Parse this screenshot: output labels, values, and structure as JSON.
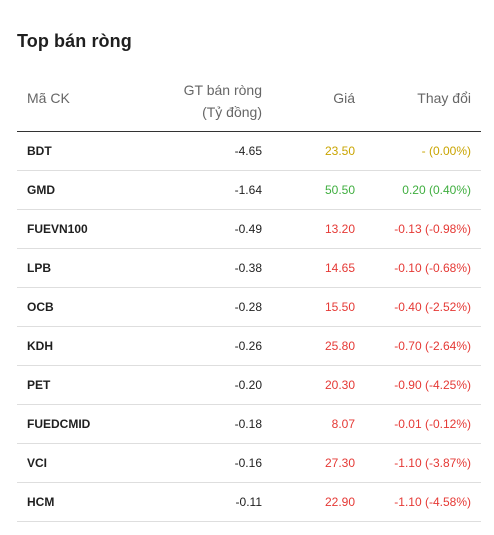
{
  "panel": {
    "title": "Top bán ròng"
  },
  "table": {
    "headers": {
      "code": "Mã CK",
      "value_line1": "GT bán ròng",
      "value_line2": "(Tỷ đồng)",
      "price": "Giá",
      "change": "Thay đổi"
    },
    "rows": [
      {
        "code": "BDT",
        "value": "-4.65",
        "price": "23.50",
        "change": "- (0.00%)",
        "status": "ref"
      },
      {
        "code": "GMD",
        "value": "-1.64",
        "price": "50.50",
        "change": "0.20 (0.40%)",
        "status": "up"
      },
      {
        "code": "FUEVN100",
        "value": "-0.49",
        "price": "13.20",
        "change": "-0.13 (-0.98%)",
        "status": "down"
      },
      {
        "code": "LPB",
        "value": "-0.38",
        "price": "14.65",
        "change": "-0.10 (-0.68%)",
        "status": "down"
      },
      {
        "code": "OCB",
        "value": "-0.28",
        "price": "15.50",
        "change": "-0.40 (-2.52%)",
        "status": "down"
      },
      {
        "code": "KDH",
        "value": "-0.26",
        "price": "25.80",
        "change": "-0.70 (-2.64%)",
        "status": "down"
      },
      {
        "code": "PET",
        "value": "-0.20",
        "price": "20.30",
        "change": "-0.90 (-4.25%)",
        "status": "down"
      },
      {
        "code": "FUEDCMID",
        "value": "-0.18",
        "price": "8.07",
        "change": "-0.01 (-0.12%)",
        "status": "down"
      },
      {
        "code": "VCI",
        "value": "-0.16",
        "price": "27.30",
        "change": "-1.10 (-3.87%)",
        "status": "down"
      },
      {
        "code": "HCM",
        "value": "-0.11",
        "price": "22.90",
        "change": "-1.10 (-4.58%)",
        "status": "down"
      }
    ]
  },
  "colors": {
    "ref": "#c9a400",
    "up": "#3fae3f",
    "down": "#e53935"
  }
}
